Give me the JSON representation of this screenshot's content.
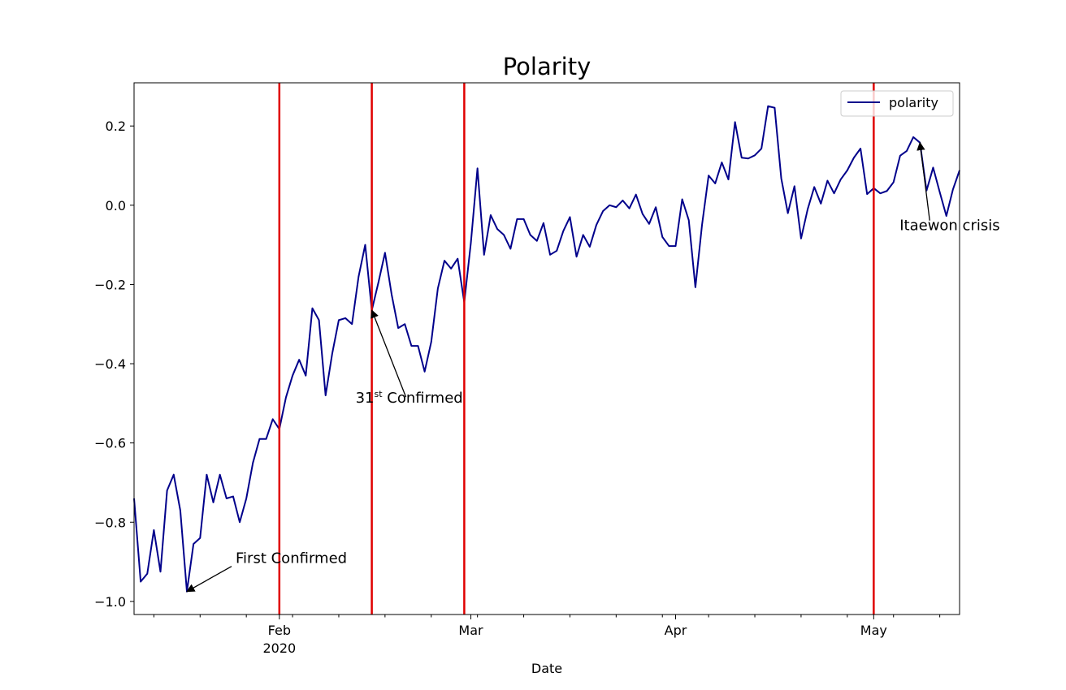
{
  "chart_data": {
    "type": "line",
    "title": "Polarity",
    "xlabel": "Date",
    "x": [
      "2020-01-10",
      "2020-01-11",
      "2020-01-12",
      "2020-01-13",
      "2020-01-14",
      "2020-01-15",
      "2020-01-16",
      "2020-01-17",
      "2020-01-18",
      "2020-01-19",
      "2020-01-20",
      "2020-01-21",
      "2020-01-22",
      "2020-01-23",
      "2020-01-24",
      "2020-01-25",
      "2020-01-26",
      "2020-01-27",
      "2020-01-28",
      "2020-01-29",
      "2020-01-30",
      "2020-01-31",
      "2020-02-01",
      "2020-02-02",
      "2020-02-03",
      "2020-02-04",
      "2020-02-05",
      "2020-02-06",
      "2020-02-07",
      "2020-02-08",
      "2020-02-09",
      "2020-02-10",
      "2020-02-11",
      "2020-02-12",
      "2020-02-13",
      "2020-02-14",
      "2020-02-15",
      "2020-02-16",
      "2020-02-17",
      "2020-02-18",
      "2020-02-19",
      "2020-02-20",
      "2020-02-21",
      "2020-02-22",
      "2020-02-23",
      "2020-02-24",
      "2020-02-25",
      "2020-02-26",
      "2020-02-27",
      "2020-02-28",
      "2020-02-29",
      "2020-03-01",
      "2020-03-02",
      "2020-03-03",
      "2020-03-04",
      "2020-03-05",
      "2020-03-06",
      "2020-03-07",
      "2020-03-08",
      "2020-03-09",
      "2020-03-10",
      "2020-03-11",
      "2020-03-12",
      "2020-03-13",
      "2020-03-14",
      "2020-03-15",
      "2020-03-16",
      "2020-03-17",
      "2020-03-18",
      "2020-03-19",
      "2020-03-20",
      "2020-03-21",
      "2020-03-22",
      "2020-03-23",
      "2020-03-24",
      "2020-03-25",
      "2020-03-26",
      "2020-03-27",
      "2020-03-28",
      "2020-03-29",
      "2020-03-30",
      "2020-03-31",
      "2020-04-01",
      "2020-04-02",
      "2020-04-03",
      "2020-04-04",
      "2020-04-05",
      "2020-04-06",
      "2020-04-07",
      "2020-04-08",
      "2020-04-09",
      "2020-04-10",
      "2020-04-11",
      "2020-04-12",
      "2020-04-13",
      "2020-04-14",
      "2020-04-15",
      "2020-04-16",
      "2020-04-17",
      "2020-04-18",
      "2020-04-19",
      "2020-04-20",
      "2020-04-21",
      "2020-04-22",
      "2020-04-23",
      "2020-04-24",
      "2020-04-25",
      "2020-04-26",
      "2020-04-27",
      "2020-04-28",
      "2020-04-29",
      "2020-04-30",
      "2020-05-01",
      "2020-05-02",
      "2020-05-03",
      "2020-05-04",
      "2020-05-05",
      "2020-05-06",
      "2020-05-07",
      "2020-05-08",
      "2020-05-09",
      "2020-05-10",
      "2020-05-11",
      "2020-05-12",
      "2020-05-13",
      "2020-05-14"
    ],
    "series": [
      {
        "name": "polarity",
        "color": "#00008b",
        "values": [
          -0.74,
          -0.95,
          -0.93,
          -0.82,
          -0.925,
          -0.72,
          -0.68,
          -0.77,
          -0.975,
          -0.855,
          -0.84,
          -0.68,
          -0.75,
          -0.68,
          -0.74,
          -0.735,
          -0.8,
          -0.74,
          -0.65,
          -0.59,
          -0.59,
          -0.54,
          -0.565,
          -0.485,
          -0.43,
          -0.39,
          -0.43,
          -0.26,
          -0.29,
          -0.48,
          -0.375,
          -0.29,
          -0.285,
          -0.3,
          -0.18,
          -0.1,
          -0.265,
          -0.195,
          -0.12,
          -0.225,
          -0.31,
          -0.3,
          -0.355,
          -0.355,
          -0.42,
          -0.345,
          -0.21,
          -0.14,
          -0.16,
          -0.135,
          -0.245,
          -0.095,
          0.093,
          -0.125,
          -0.025,
          -0.06,
          -0.075,
          -0.11,
          -0.035,
          -0.035,
          -0.075,
          -0.09,
          -0.045,
          -0.125,
          -0.115,
          -0.065,
          -0.03,
          -0.13,
          -0.075,
          -0.105,
          -0.05,
          -0.015,
          0.0,
          -0.005,
          0.012,
          -0.008,
          0.027,
          -0.022,
          -0.047,
          -0.005,
          -0.08,
          -0.103,
          -0.103,
          0.015,
          -0.038,
          -0.207,
          -0.05,
          0.075,
          0.055,
          0.108,
          0.065,
          0.21,
          0.12,
          0.118,
          0.126,
          0.143,
          0.25,
          0.246,
          0.068,
          -0.02,
          0.048,
          -0.084,
          -0.01,
          0.046,
          0.004,
          0.062,
          0.03,
          0.065,
          0.088,
          0.12,
          0.143,
          0.028,
          0.043,
          0.03,
          0.036,
          0.058,
          0.125,
          0.137,
          0.172,
          0.158,
          0.037,
          0.095,
          0.033,
          -0.027,
          0.04,
          0.088
        ]
      }
    ],
    "xlim": [
      "2020-01-10",
      "2020-05-14"
    ],
    "xticks": [
      {
        "value": "2020-02-01",
        "label": "Feb"
      },
      {
        "value": "2020-03-01",
        "label": "Mar"
      },
      {
        "value": "2020-04-01",
        "label": "Apr"
      },
      {
        "value": "2020-05-01",
        "label": "May"
      }
    ],
    "year_label": "2020",
    "xminorticks": [
      "2020-01-13",
      "2020-01-20",
      "2020-01-27",
      "2020-02-03",
      "2020-02-10",
      "2020-02-17",
      "2020-02-24",
      "2020-03-02",
      "2020-03-09",
      "2020-03-16",
      "2020-03-23",
      "2020-03-30",
      "2020-04-06",
      "2020-04-13",
      "2020-04-20",
      "2020-04-27",
      "2020-05-04",
      "2020-05-11"
    ],
    "ylim": [
      -1.033,
      0.309
    ],
    "yticks": [
      0.2,
      {
        "value": 0,
        "label": "0.0"
      },
      {
        "value": -0.2,
        "label": "−0.2"
      },
      {
        "value": -0.4,
        "label": "−0.4"
      },
      {
        "value": -0.6,
        "label": "−0.6"
      },
      {
        "value": -0.8,
        "label": "−0.8"
      },
      {
        "value": -1.0,
        "label": "−1.0"
      }
    ],
    "vlines": {
      "color": "#e00000",
      "x": [
        "2020-02-01",
        "2020-02-15",
        "2020-02-29",
        "2020-05-01"
      ]
    },
    "annotations": [
      {
        "text": "First Confirmed",
        "x": "2020-01-18",
        "y": -0.975
      },
      {
        "text": "31",
        "superscript": "st",
        "text_after": " Confirmed",
        "x": "2020-02-15",
        "y": -0.265
      },
      {
        "text": "Itaewon crisis",
        "x": "2020-05-08",
        "y": 0.158
      }
    ],
    "legend": "upper right"
  }
}
